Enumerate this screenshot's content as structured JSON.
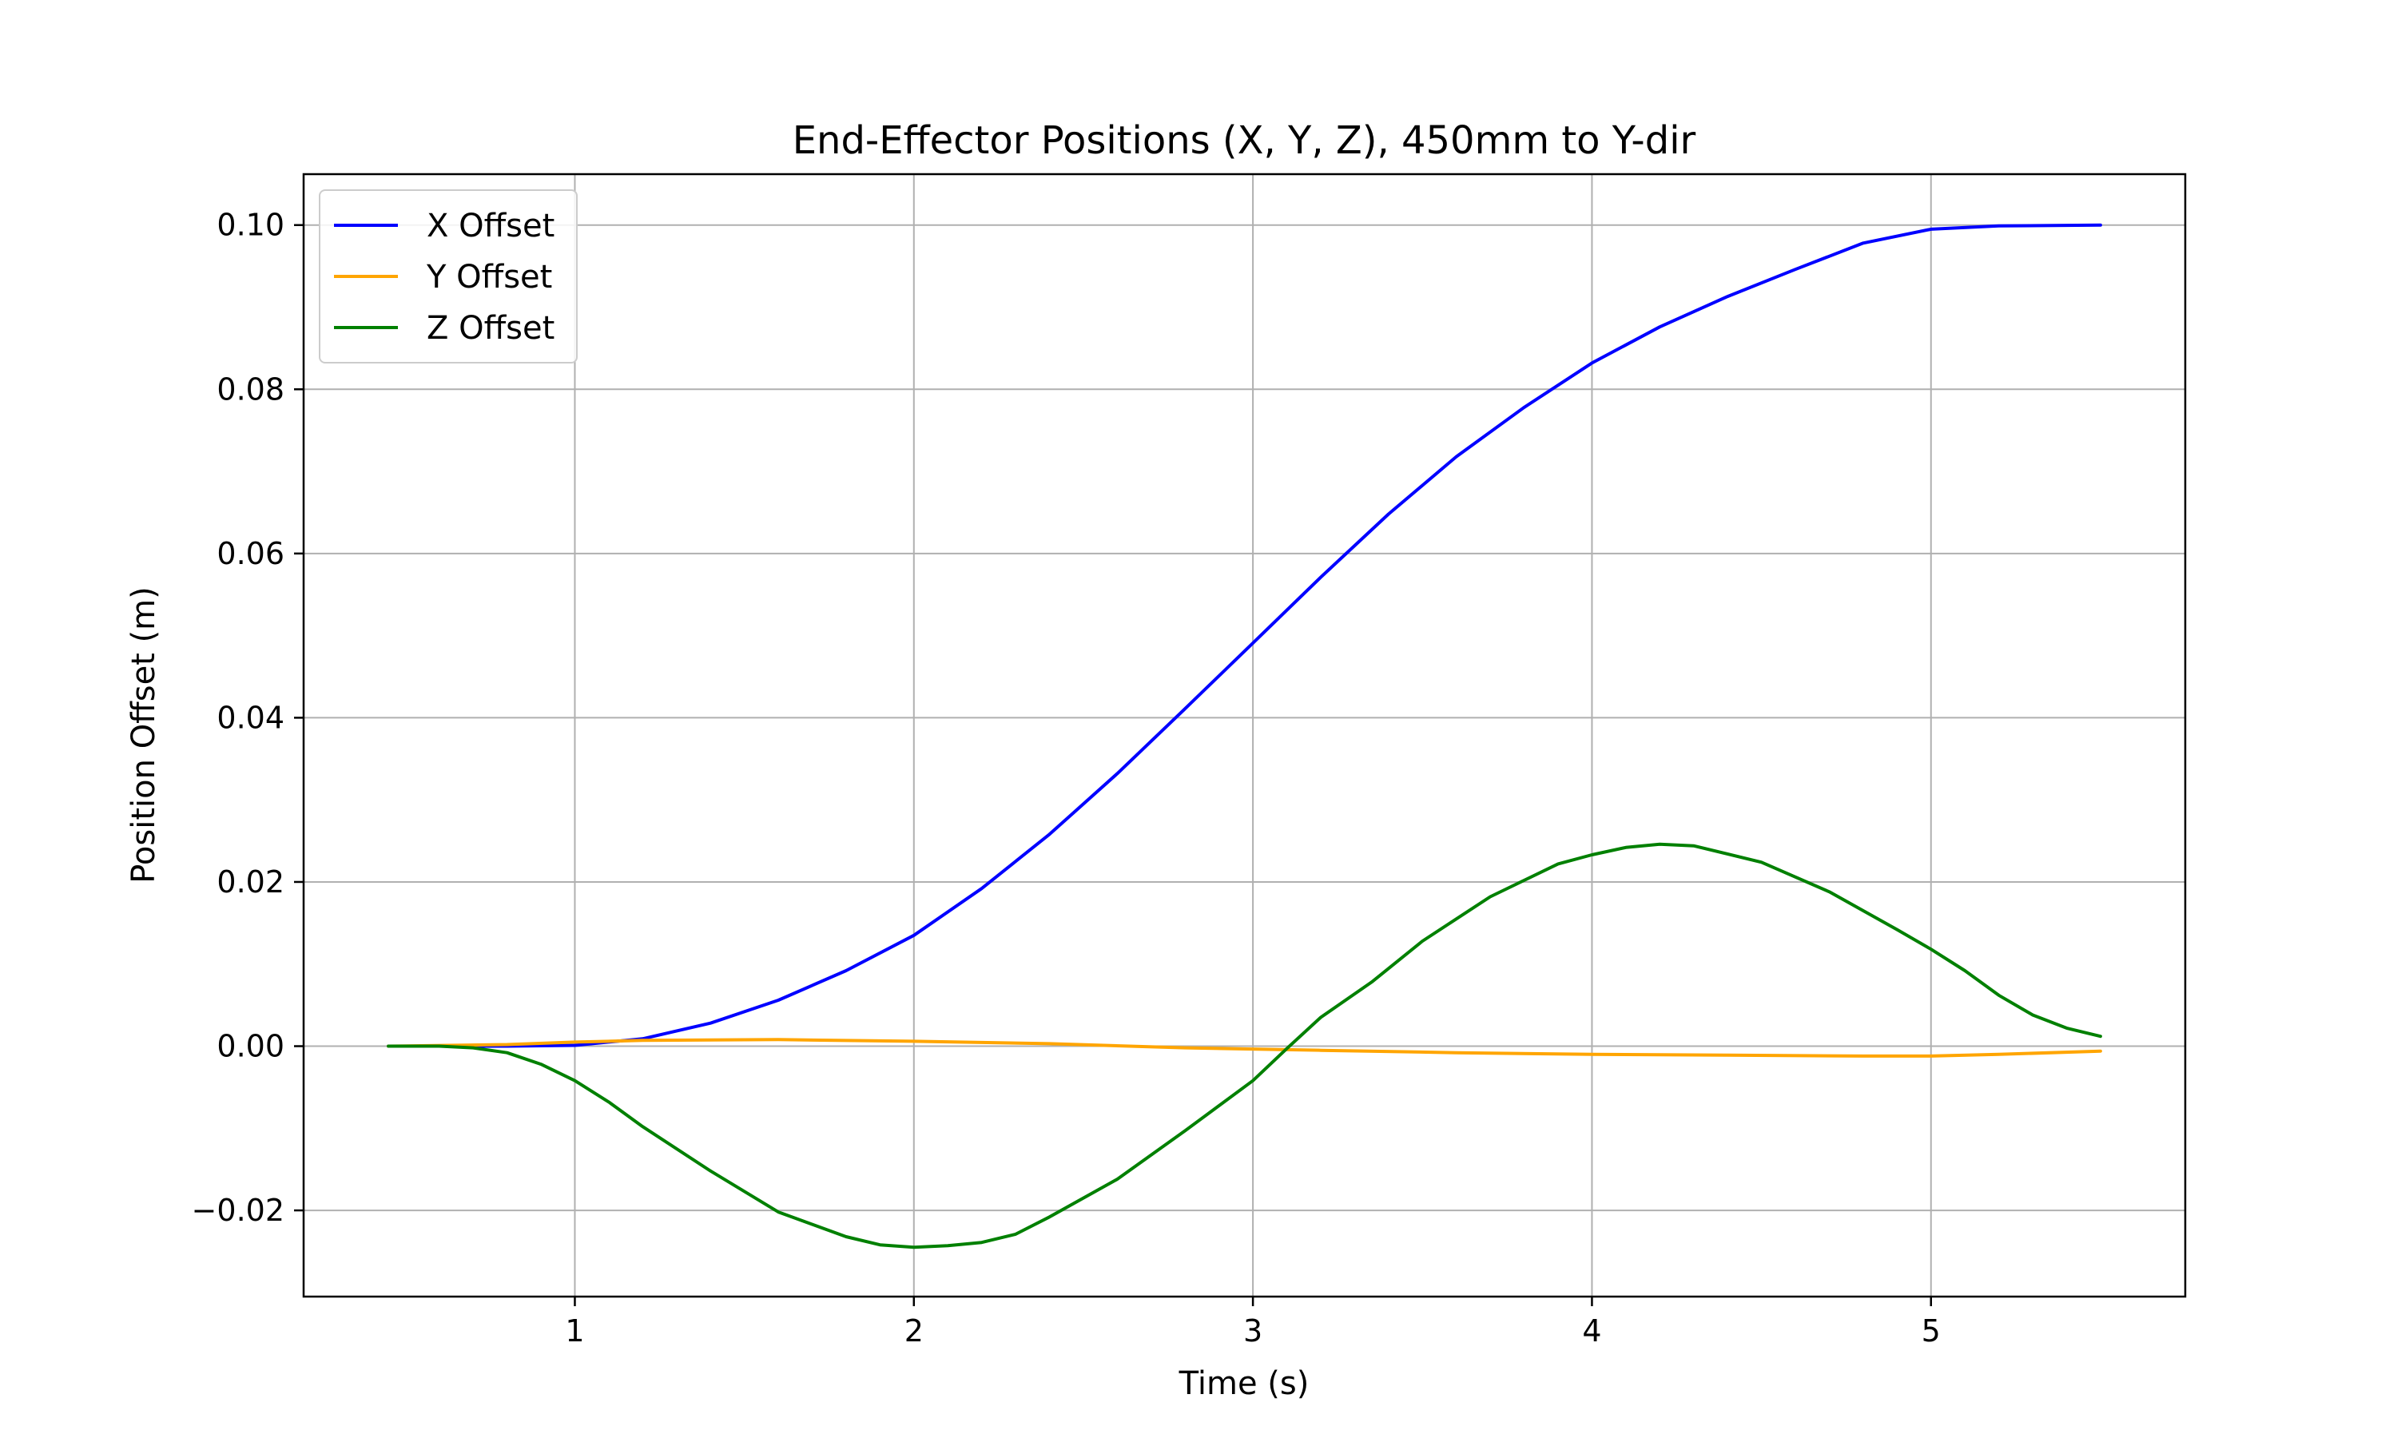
{
  "chart_data": {
    "type": "line",
    "title": "End-Effector Positions (X, Y, Z), 450mm to Y-dir",
    "xlabel": "Time (s)",
    "ylabel": "Position Offset (m)",
    "xlim": [
      0.2,
      5.75
    ],
    "ylim": [
      -0.0305,
      0.1062
    ],
    "xticks": [
      1,
      2,
      3,
      4,
      5
    ],
    "xtick_labels": [
      "1",
      "2",
      "3",
      "4",
      "5"
    ],
    "yticks": [
      -0.02,
      0.0,
      0.02,
      0.04,
      0.06,
      0.08,
      0.1
    ],
    "ytick_labels": [
      "−0.02",
      "0.00",
      "0.02",
      "0.04",
      "0.06",
      "0.08",
      "0.10"
    ],
    "grid": true,
    "legend_position": "top-left",
    "series": [
      {
        "name": "X Offset",
        "color": "#0000ff",
        "x": [
          0.45,
          0.6,
          0.8,
          1.0,
          1.2,
          1.4,
          1.6,
          1.8,
          2.0,
          2.2,
          2.4,
          2.6,
          2.8,
          3.0,
          3.2,
          3.4,
          3.6,
          3.8,
          4.0,
          4.2,
          4.4,
          4.6,
          4.8,
          5.0,
          5.2,
          5.5
        ],
        "y": [
          0.0,
          0.0,
          0.0,
          0.0001,
          0.0009,
          0.0028,
          0.0056,
          0.0092,
          0.0135,
          0.0192,
          0.0258,
          0.0332,
          0.0411,
          0.0491,
          0.0571,
          0.0648,
          0.0718,
          0.0778,
          0.0832,
          0.0876,
          0.0913,
          0.0946,
          0.0978,
          0.0995,
          0.0999,
          0.1
        ]
      },
      {
        "name": "Y Offset",
        "color": "#ffa500",
        "x": [
          0.45,
          0.8,
          1.0,
          1.2,
          1.6,
          2.0,
          2.4,
          2.8,
          3.2,
          3.6,
          4.0,
          4.4,
          4.8,
          5.0,
          5.2,
          5.5
        ],
        "y": [
          0.0,
          0.0002,
          0.0005,
          0.0007,
          0.0008,
          0.0006,
          0.0003,
          -0.0002,
          -0.0005,
          -0.0008,
          -0.001,
          -0.0011,
          -0.0012,
          -0.0012,
          -0.001,
          -0.0006
        ]
      },
      {
        "name": "Z Offset",
        "color": "#008000",
        "x": [
          0.45,
          0.6,
          0.7,
          0.8,
          0.9,
          1.0,
          1.1,
          1.2,
          1.4,
          1.6,
          1.8,
          1.9,
          2.0,
          2.1,
          2.2,
          2.3,
          2.4,
          2.6,
          2.8,
          3.0,
          3.1,
          3.2,
          3.35,
          3.5,
          3.7,
          3.9,
          4.0,
          4.1,
          4.2,
          4.3,
          4.5,
          4.7,
          4.9,
          5.0,
          5.1,
          5.2,
          5.3,
          5.4,
          5.5
        ],
        "y": [
          0.0,
          0.0,
          -0.0002,
          -0.0008,
          -0.0022,
          -0.0042,
          -0.0068,
          -0.0098,
          -0.0152,
          -0.0202,
          -0.0232,
          -0.0242,
          -0.0245,
          -0.0243,
          -0.0239,
          -0.0229,
          -0.0208,
          -0.0162,
          -0.0103,
          -0.0042,
          -0.0003,
          0.0035,
          0.0078,
          0.0128,
          0.0182,
          0.0222,
          0.0233,
          0.0242,
          0.0246,
          0.0244,
          0.0224,
          0.0188,
          0.0142,
          0.0118,
          0.0092,
          0.0062,
          0.0038,
          0.0022,
          0.0012
        ]
      }
    ]
  }
}
